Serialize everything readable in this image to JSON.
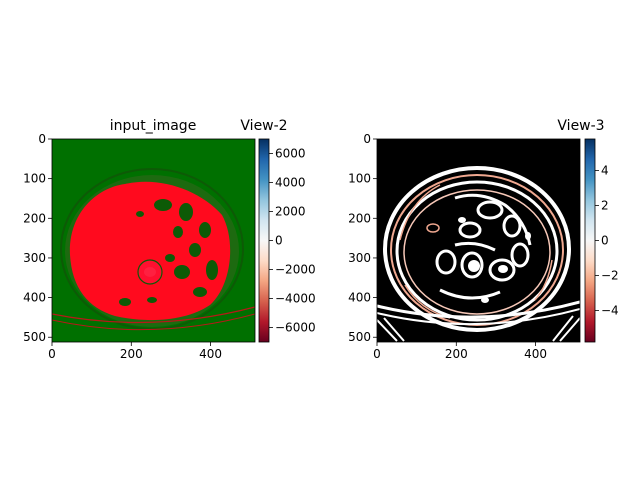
{
  "chart_data": [
    {
      "type": "heatmap",
      "title": "input_image",
      "colorbar_title": "View-2",
      "xlabel": "",
      "ylabel": "",
      "xlim": [
        0,
        512
      ],
      "ylim": [
        512,
        0
      ],
      "x_ticks": [
        0,
        200,
        400
      ],
      "y_ticks": [
        0,
        100,
        200,
        300,
        400,
        500
      ],
      "colorbar": {
        "colormap": "RdBu",
        "range": [
          -7000,
          7000
        ],
        "ticks": [
          6000,
          4000,
          2000,
          0,
          -2000,
          -4000,
          -6000
        ],
        "tick_labels": [
          "6000",
          "4000",
          "2000",
          "0",
          "−2000",
          "−4000",
          "−6000"
        ]
      },
      "colors": {
        "background": "#007000",
        "tissue": "#ff0a1e",
        "structure": "#0d5a06"
      },
      "image_content": "axial abdominal CT slice"
    },
    {
      "type": "heatmap",
      "title": "",
      "colorbar_title": "View-3",
      "xlabel": "",
      "ylabel": "",
      "xlim": [
        0,
        512
      ],
      "ylim": [
        512,
        0
      ],
      "x_ticks": [
        0,
        200,
        400
      ],
      "y_ticks": [
        0,
        100,
        200,
        300,
        400,
        500
      ],
      "colorbar": {
        "colormap": "RdBu",
        "range": [
          -5.8,
          5.8
        ],
        "ticks": [
          4,
          2,
          0,
          -2,
          -4
        ],
        "tick_labels": [
          "4",
          "2",
          "0",
          "−2",
          "−4"
        ]
      },
      "colors": {
        "background": "#000000",
        "edge": "#ffffff",
        "edge_tint": "#f0a890"
      },
      "image_content": "edge map of the same slice"
    }
  ]
}
